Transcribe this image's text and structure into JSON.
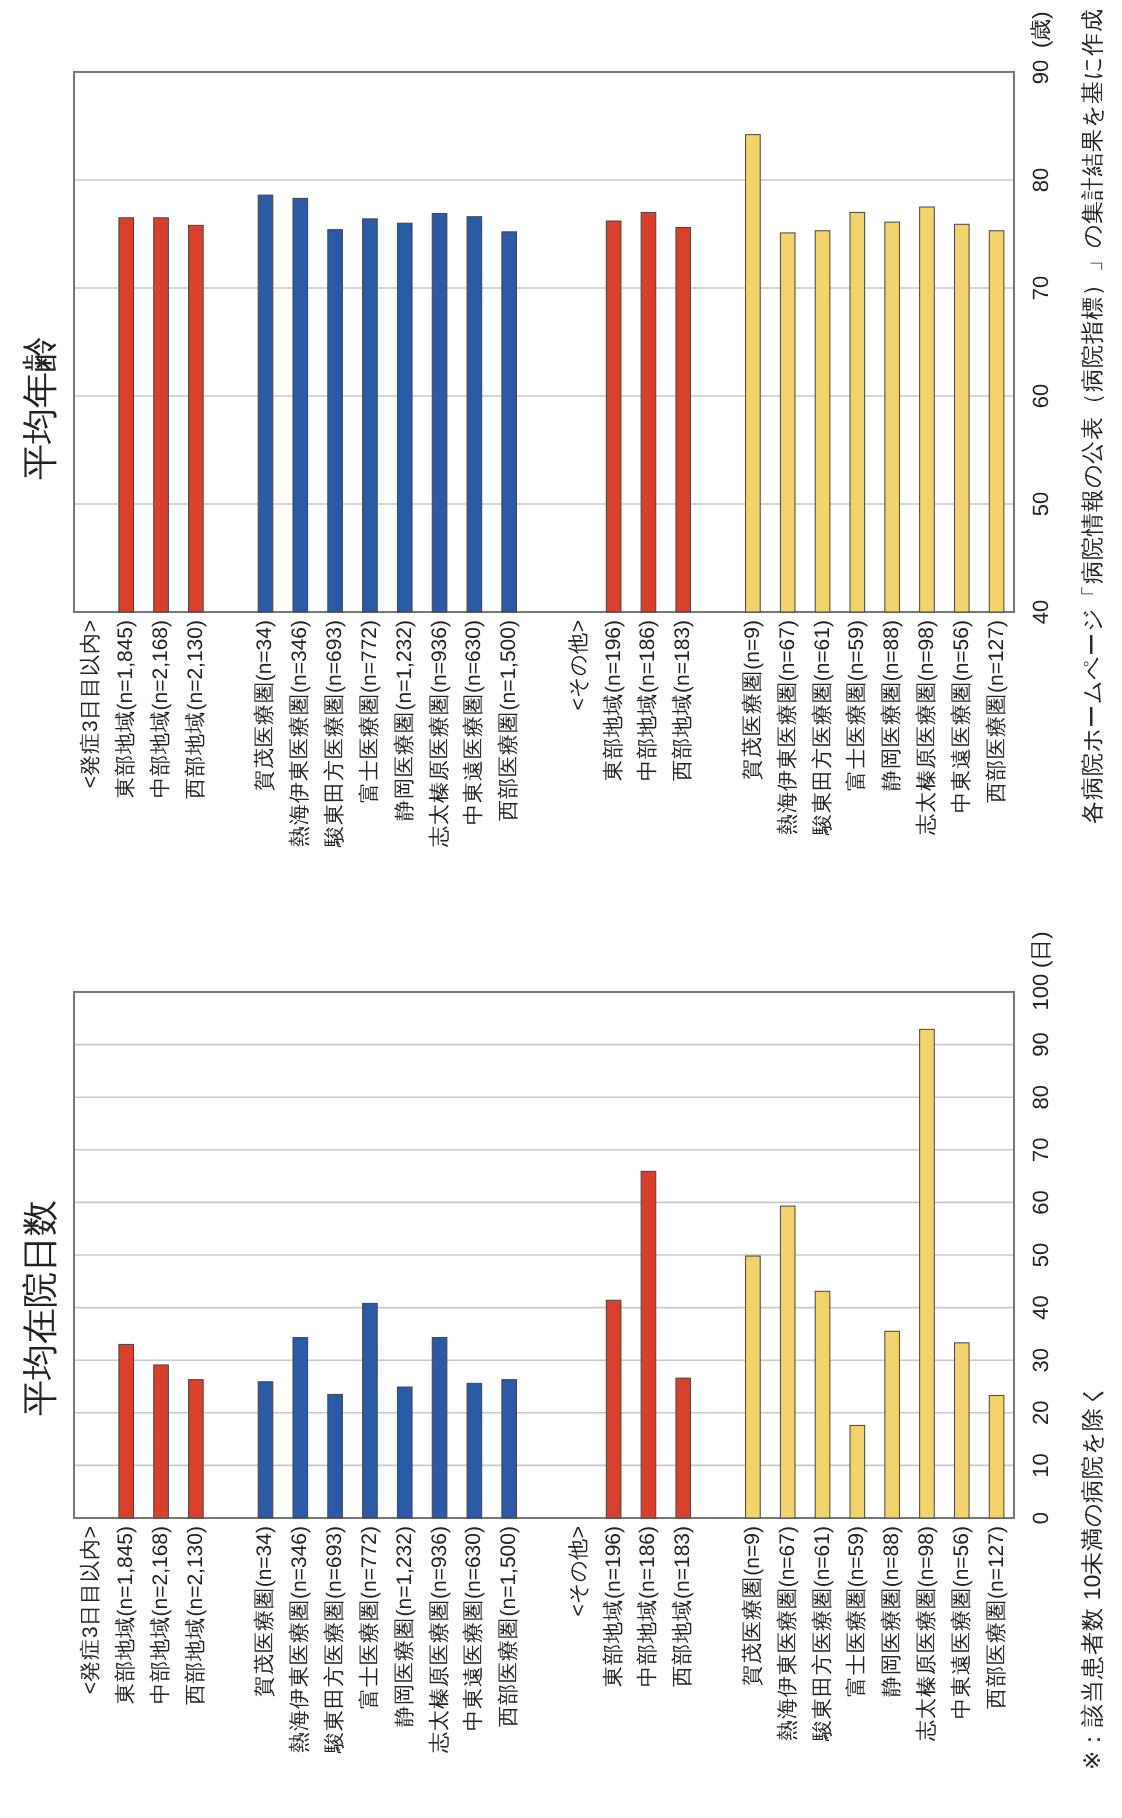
{
  "chart_data": [
    {
      "type": "bar",
      "title": "平均年齢",
      "ylabel": "(歳)",
      "categories": [
        "<発症3日目以内>",
        "東部地域(n=1,845)",
        "中部地域(n=2,168)",
        "西部地域(n=2,130)",
        null,
        "賀茂医療圏(n=34)",
        "熱海伊東医療圏(n=346)",
        "駿東田方医療圏(n=693)",
        "富士医療圏(n=772)",
        "静岡医療圏(n=1,232)",
        "志太榛原医療圏(n=936)",
        "中東遠医療圏(n=630)",
        "西部医療圏(n=1,500)",
        null,
        "<その他>",
        "東部地域(n=196)",
        "中部地域(n=186)",
        "西部地域(n=183)",
        null,
        "賀茂医療圏(n=9)",
        "熱海伊東医療圏(n=67)",
        "駿東田方医療圏(n=61)",
        "富士医療圏(n=59)",
        "静岡医療圏(n=88)",
        "志太榛原医療圏(n=98)",
        "中東遠医療圏(n=56)",
        "西部医療圏(n=127)"
      ],
      "values": [
        null,
        76.5,
        76.5,
        75.8,
        null,
        78.6,
        78.3,
        75.4,
        76.4,
        76.0,
        76.9,
        76.6,
        75.2,
        null,
        null,
        76.2,
        77.0,
        75.6,
        null,
        84.2,
        75.1,
        75.3,
        77.0,
        76.1,
        77.5,
        75.9,
        75.3
      ],
      "colors": [
        null,
        "#d8402c",
        "#d8402c",
        "#d8402c",
        null,
        "#2b5aa6",
        "#2b5aa6",
        "#2b5aa6",
        "#2b5aa6",
        "#2b5aa6",
        "#2b5aa6",
        "#2b5aa6",
        "#2b5aa6",
        null,
        null,
        "#d8402c",
        "#d8402c",
        "#d8402c",
        null,
        "#f2d36b",
        "#f2d36b",
        "#f2d36b",
        "#f2d36b",
        "#f2d36b",
        "#f2d36b",
        "#f2d36b",
        "#f2d36b"
      ],
      "ylim": [
        40,
        90
      ],
      "yticks": [
        40,
        50,
        60,
        70,
        80,
        90
      ],
      "grid": "y",
      "annotations": [
        "各病院ホームページ「病院情報の公表（病院指標）」の集計結果を基に作成"
      ]
    },
    {
      "type": "bar",
      "title": "平均在院日数",
      "ylabel": "(日)",
      "categories": [
        "<発症3日目以内>",
        "東部地域(n=1,845)",
        "中部地域(n=2,168)",
        "西部地域(n=2,130)",
        null,
        "賀茂医療圏(n=34)",
        "熱海伊東医療圏(n=346)",
        "駿東田方医療圏(n=693)",
        "富士医療圏(n=772)",
        "静岡医療圏(n=1,232)",
        "志太榛原医療圏(n=936)",
        "中東遠医療圏(n=630)",
        "西部医療圏(n=1,500)",
        null,
        "<その他>",
        "東部地域(n=196)",
        "中部地域(n=186)",
        "西部地域(n=183)",
        null,
        "賀茂医療圏(n=9)",
        "熱海伊東医療圏(n=67)",
        "駿東田方医療圏(n=61)",
        "富士医療圏(n=59)",
        "静岡医療圏(n=88)",
        "志太榛原医療圏(n=98)",
        "中東遠医療圏(n=56)",
        "西部医療圏(n=127)"
      ],
      "values": [
        null,
        33.0,
        29.1,
        26.3,
        null,
        25.9,
        34.3,
        23.5,
        40.8,
        24.9,
        34.3,
        25.6,
        26.3,
        null,
        null,
        41.4,
        65.9,
        26.6,
        null,
        49.8,
        59.3,
        43.1,
        17.6,
        35.5,
        92.9,
        33.3,
        23.3
      ],
      "colors": [
        null,
        "#d8402c",
        "#d8402c",
        "#d8402c",
        null,
        "#2b5aa6",
        "#2b5aa6",
        "#2b5aa6",
        "#2b5aa6",
        "#2b5aa6",
        "#2b5aa6",
        "#2b5aa6",
        "#2b5aa6",
        null,
        null,
        "#d8402c",
        "#d8402c",
        "#d8402c",
        null,
        "#f2d36b",
        "#f2d36b",
        "#f2d36b",
        "#f2d36b",
        "#f2d36b",
        "#f2d36b",
        "#f2d36b",
        "#f2d36b"
      ],
      "ylim": [
        0,
        100
      ],
      "yticks": [
        0,
        10,
        20,
        30,
        40,
        50,
        60,
        70,
        80,
        90,
        100
      ],
      "grid": "y",
      "annotations": [
        "※：該当患者数 10未満の病院を除く"
      ]
    }
  ]
}
